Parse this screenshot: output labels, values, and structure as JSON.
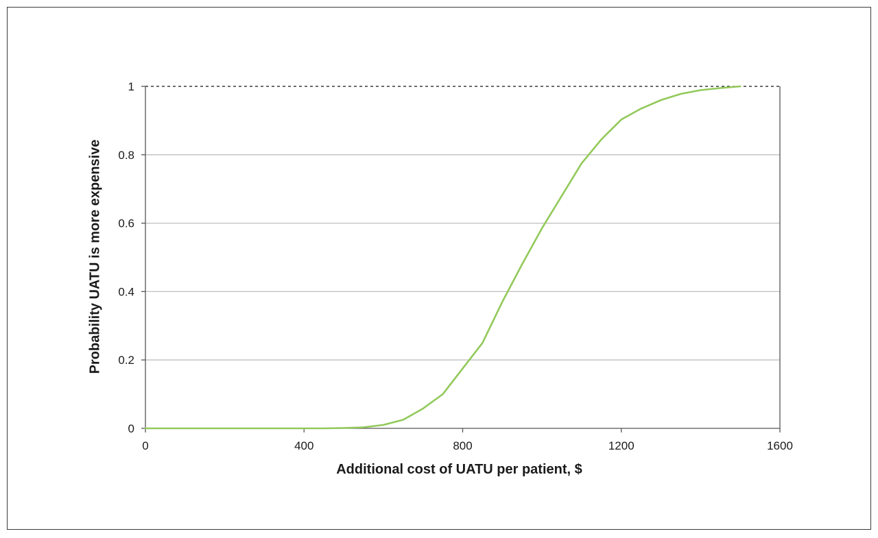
{
  "chart_data": {
    "type": "line",
    "title": "",
    "xlabel": "Additional cost of UATU per patient, $",
    "ylabel": "Probability UATU is more expensive",
    "xlim": [
      0,
      1600
    ],
    "ylim": [
      0,
      1
    ],
    "x_ticks": [
      0,
      400,
      800,
      1200,
      1600
    ],
    "x_tick_labels": [
      "0",
      "400",
      "800",
      "1200",
      "1600"
    ],
    "y_ticks": [
      0,
      0.2,
      0.4,
      0.6,
      0.8,
      1
    ],
    "y_tick_labels": [
      "0",
      "0.2",
      "0.4",
      "0.6",
      "0.8",
      "1"
    ],
    "grid": "horizontal",
    "reference_line": {
      "y": 1,
      "style": "dashed"
    },
    "series": [
      {
        "color": "#92c95a",
        "x": [
          0,
          100,
          200,
          300,
          400,
          450,
          500,
          550,
          600,
          650,
          700,
          750,
          800,
          850,
          900,
          950,
          1000,
          1050,
          1100,
          1150,
          1200,
          1250,
          1300,
          1350,
          1400,
          1450,
          1500
        ],
        "y": [
          0,
          0,
          0,
          0,
          0,
          0,
          0.001,
          0.003,
          0.01,
          0.025,
          0.058,
          0.1,
          0.175,
          0.25,
          0.37,
          0.48,
          0.585,
          0.68,
          0.775,
          0.845,
          0.903,
          0.935,
          0.96,
          0.978,
          0.989,
          0.995,
          1.0
        ]
      }
    ]
  },
  "colors": {
    "grid": "#bfbfbf",
    "axis": "#555555",
    "frame": "#3a3a3a"
  }
}
